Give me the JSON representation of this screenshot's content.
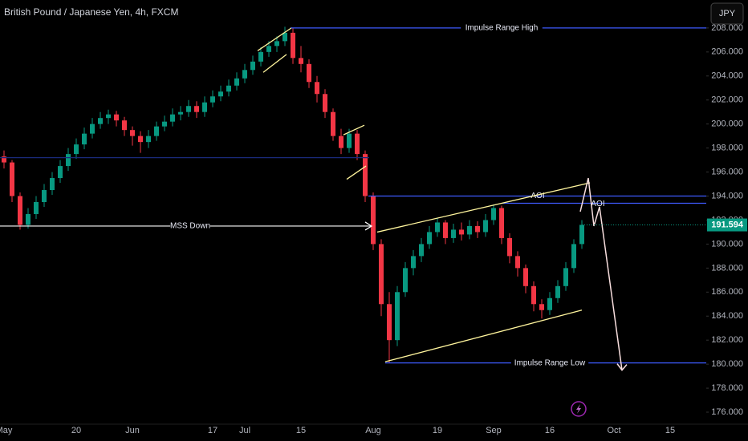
{
  "chart_data": {
    "type": "candlestick",
    "title": "British Pound / Japanese Yen, 4h, FXCM",
    "currency": "JPY",
    "categories": [
      "May",
      null,
      null,
      null,
      null,
      null,
      null,
      null,
      null,
      "20",
      null,
      null,
      null,
      null,
      null,
      null,
      "Jun",
      null,
      null,
      null,
      null,
      null,
      null,
      null,
      null,
      null,
      "17",
      null,
      null,
      null,
      "Jul",
      null,
      null,
      null,
      null,
      null,
      null,
      "15",
      null,
      null,
      null,
      null,
      null,
      null,
      null,
      null,
      "Aug",
      null,
      null,
      null,
      null,
      null,
      null,
      null,
      "19",
      null,
      null,
      null,
      null,
      null,
      null,
      "Sep",
      null,
      null,
      null,
      null,
      null,
      null,
      "16",
      null,
      null,
      null,
      null,
      null,
      null,
      null,
      "Oct",
      null,
      null,
      null,
      null,
      null,
      null,
      "15",
      null,
      null,
      null,
      null
    ],
    "open": [
      197.3,
      196.8,
      194,
      191.6,
      192.5,
      193.5,
      194.5,
      195.5,
      196.5,
      197.5,
      198.3,
      199.2,
      200,
      200.5,
      200.8,
      200.3,
      199.5,
      199,
      198.5,
      199,
      199.8,
      200.2,
      200.8,
      201,
      201.5,
      201,
      201.8,
      202.3,
      202.7,
      203.2,
      203.8,
      204.5,
      205.2,
      206,
      206.5,
      206.9,
      207.6,
      205.5,
      205,
      203.5,
      202.5,
      201,
      199,
      198,
      199.2,
      197.5,
      194,
      190,
      185,
      182,
      186,
      188,
      189,
      190,
      191,
      191.8,
      190.5,
      191.2,
      190.8,
      191.5,
      191,
      192,
      193,
      190.5,
      189,
      188,
      186.5,
      185,
      184.5,
      185.5,
      186.5,
      188,
      190,
      null,
      null,
      null,
      null,
      null,
      null,
      null,
      null,
      null,
      null,
      null,
      null,
      null,
      null,
      null
    ],
    "high": [
      197.8,
      197,
      194.3,
      193,
      194,
      195,
      196,
      197,
      198,
      198.8,
      199.7,
      200.5,
      201,
      201.2,
      201.1,
      200.6,
      199.8,
      199.4,
      199.5,
      200.2,
      200.7,
      201.3,
      201.5,
      202,
      201.9,
      202.3,
      202.8,
      203.2,
      203.7,
      204.3,
      205,
      205.7,
      206.4,
      206.9,
      207.3,
      208.1,
      208,
      206.5,
      205.4,
      204,
      202.9,
      201.3,
      199.6,
      199.6,
      199.5,
      197.8,
      194.3,
      190.4,
      186,
      186.5,
      188.5,
      189.5,
      190.5,
      191.5,
      192.2,
      192,
      191.7,
      191.8,
      192,
      191.9,
      192.5,
      193.3,
      193.2,
      190.9,
      189.4,
      188.3,
      186.9,
      185.4,
      186,
      187,
      188.5,
      190.4,
      192,
      null,
      null,
      null,
      null,
      null,
      null,
      null,
      null,
      null,
      null,
      null,
      null,
      null,
      null,
      null
    ],
    "low": [
      196.3,
      193.5,
      191.2,
      191.3,
      192.1,
      193.1,
      194.1,
      195.1,
      196.1,
      197.1,
      197.9,
      198.8,
      199.6,
      200,
      199.8,
      199,
      198.2,
      197.6,
      198,
      198.6,
      199.4,
      199.8,
      200.3,
      200.6,
      200.5,
      200.6,
      201.4,
      201.9,
      202.3,
      202.8,
      203.4,
      204.1,
      204.8,
      205.6,
      206,
      206.5,
      205,
      204.3,
      203,
      201.8,
      200.5,
      198.6,
      197.5,
      197.6,
      197,
      193.5,
      189.5,
      184,
      180.1,
      181.5,
      185.6,
      187.4,
      188.5,
      189.6,
      190.6,
      190,
      190.1,
      190.3,
      190.4,
      190.5,
      190.6,
      191.6,
      190,
      188.4,
      187.3,
      185.9,
      184.4,
      183.8,
      184.1,
      185.1,
      186.1,
      187.6,
      189.6,
      null,
      null,
      null,
      null,
      null,
      null,
      null,
      null,
      null,
      null,
      null,
      null,
      null,
      null,
      null
    ],
    "close": [
      196.8,
      194,
      191.6,
      192.5,
      193.5,
      194.5,
      195.5,
      196.5,
      197.5,
      198.3,
      199.2,
      200,
      200.5,
      200.8,
      200.3,
      199.5,
      199,
      198.5,
      199,
      199.8,
      200.2,
      200.8,
      201,
      201.5,
      201,
      201.8,
      202.3,
      202.7,
      203.2,
      203.8,
      204.5,
      205.2,
      206,
      206.5,
      206.9,
      207.6,
      205.5,
      205,
      203.5,
      202.5,
      201,
      199,
      198,
      199.2,
      197.5,
      194,
      190,
      185,
      182,
      186,
      188,
      189,
      190,
      191,
      191.8,
      190.5,
      191.2,
      190.8,
      191.5,
      191,
      192,
      193,
      190.5,
      189,
      188,
      186.5,
      185,
      184.5,
      185.5,
      186.5,
      188,
      190,
      191.6,
      null,
      null,
      null,
      null,
      null,
      null,
      null,
      null,
      null,
      null,
      null,
      null,
      null,
      null,
      null
    ],
    "up_color": "#089981",
    "down_color": "#f23645",
    "last_price": 191.594,
    "ylim": [
      175,
      210.33
    ],
    "yticks": [
      {
        "value": 176,
        "label": "176.000"
      },
      {
        "value": 178,
        "label": "178.000"
      },
      {
        "value": 180,
        "label": "180.000"
      },
      {
        "value": 182,
        "label": "182.000"
      },
      {
        "value": 184,
        "label": "184.000"
      },
      {
        "value": 186,
        "label": "186.000"
      },
      {
        "value": 188,
        "label": "188.000"
      },
      {
        "value": 190,
        "label": "190.000"
      },
      {
        "value": 192,
        "label": "192.000"
      },
      {
        "value": 194,
        "label": "194.000"
      },
      {
        "value": 196,
        "label": "196.000"
      },
      {
        "value": 198,
        "label": "198.000"
      },
      {
        "value": 200,
        "label": "200.000"
      },
      {
        "value": 202,
        "label": "202.000"
      },
      {
        "value": 204,
        "label": "204.000"
      },
      {
        "value": 206,
        "label": "206.000"
      },
      {
        "value": 208,
        "label": "208.000"
      }
    ],
    "levels": [
      {
        "label": "Impulse Range High",
        "value": 208,
        "from": 35.7,
        "to": 87.5,
        "label_at": 62,
        "color": "#3d5afe"
      },
      {
        "label": "Impulse Range Low",
        "value": 180.1,
        "from": 47.5,
        "to": 87.5,
        "label_at": 68,
        "color": "#3d5afe"
      },
      {
        "value": 197.2,
        "from": -0.5,
        "to": 45.5,
        "color": "#1a2a7a"
      },
      {
        "label": "AOI",
        "value": 194,
        "from": 45.4,
        "to": 87.5,
        "label_at": 66.5,
        "color": "#3d5afe"
      },
      {
        "label": "AOI",
        "value": 193.4,
        "from": 62,
        "to": 87.5,
        "label_at": 74,
        "color": "#3d5afe"
      },
      {
        "label": "MSS Down",
        "value": 191.5,
        "from": -0.5,
        "to": 45.8,
        "label_at": 23.2,
        "color": "#ffffff",
        "arrow": true
      }
    ],
    "trendlines": [
      {
        "x": [
          47.5,
          72
        ],
        "y": [
          180.2,
          184.5
        ],
        "color": "#fff59d"
      },
      {
        "x": [
          46.5,
          73
        ],
        "y": [
          191,
          195.1
        ],
        "color": "#fff59d"
      },
      {
        "x": [
          31.6,
          35.8
        ],
        "y": [
          206.1,
          208
        ],
        "color": "#fff59d"
      },
      {
        "x": [
          32.3,
          35.2
        ],
        "y": [
          204.3,
          205.8
        ],
        "color": "#fff59d"
      },
      {
        "x": [
          42.3,
          44.9
        ],
        "y": [
          199.1,
          199.9
        ],
        "color": "#fff59d"
      },
      {
        "x": [
          42.7,
          45.1
        ],
        "y": [
          195.4,
          196.5
        ],
        "color": "#fff59d"
      }
    ],
    "projection": {
      "x": [
        71.8,
        72.8,
        73.5,
        74.2,
        77
      ],
      "y": [
        192.7,
        195.5,
        191.5,
        193.1,
        179.5
      ],
      "color": "#f8dede"
    }
  }
}
